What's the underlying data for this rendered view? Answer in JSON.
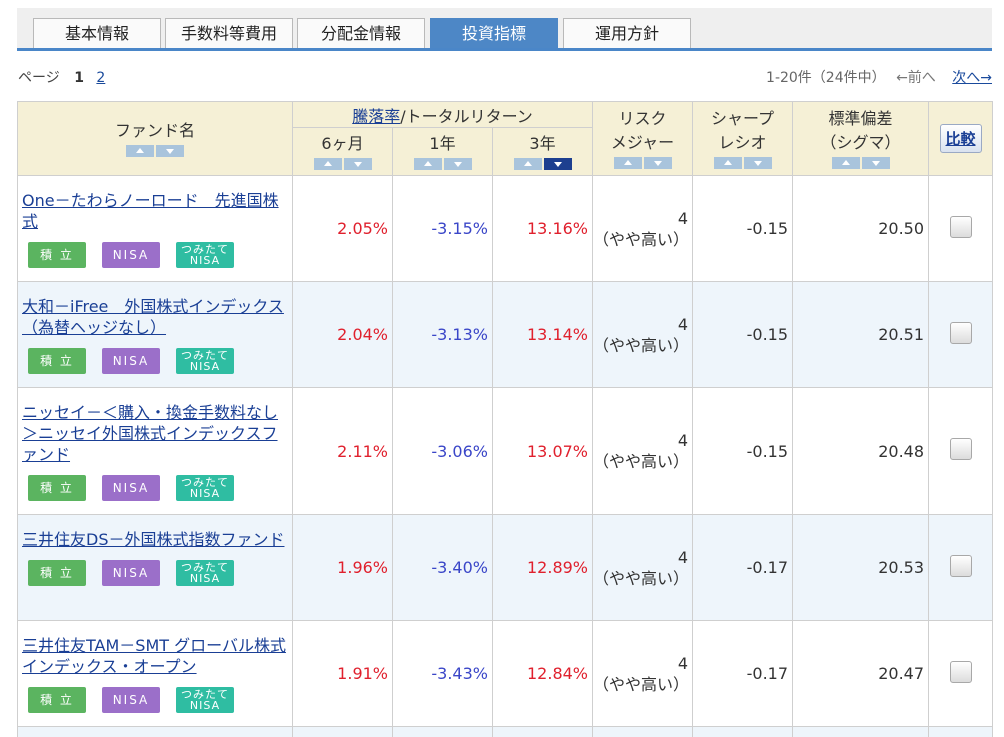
{
  "tabs": [
    {
      "label": "基本情報",
      "active": false
    },
    {
      "label": "手数料等費用",
      "active": false
    },
    {
      "label": "分配金情報",
      "active": false
    },
    {
      "label": "投資指標",
      "active": true
    },
    {
      "label": "運用方針",
      "active": false
    }
  ],
  "pager": {
    "label": "ページ",
    "current": "1",
    "next_page": "2",
    "range": "1-20件（24件中）",
    "prev": "←前へ",
    "next": "次へ→"
  },
  "header": {
    "fund_name": "ファンド名",
    "return_link": "騰落率",
    "return_rest": "/トータルリターン",
    "p6m": "6ヶ月",
    "p1y": "1年",
    "p3y": "3年",
    "risk_l1": "リスク",
    "risk_l2": "メジャー",
    "sharpe_l1": "シャープ",
    "sharpe_l2": "レシオ",
    "std_l1": "標準偏差",
    "std_l2": "（シグマ）",
    "compare": "比較"
  },
  "badges": {
    "tsumi": "積 立",
    "nisa": "NISA",
    "tsumitate_l1": "つみたて",
    "tsumitate_l2": "NISA"
  },
  "rows": [
    {
      "name": "One－たわらノーロード　先進国株式",
      "r6m": "2.05%",
      "r1y": "-3.15%",
      "r3y": "13.16%",
      "risk": "4",
      "risk_label": "（やや高い）",
      "sharpe": "-0.15",
      "std": "20.50"
    },
    {
      "name": "大和－iFree　外国株式インデックス（為替ヘッジなし）",
      "r6m": "2.04%",
      "r1y": "-3.13%",
      "r3y": "13.14%",
      "risk": "4",
      "risk_label": "（やや高い）",
      "sharpe": "-0.15",
      "std": "20.51"
    },
    {
      "name": "ニッセイ－＜購入・換金手数料なし＞ニッセイ外国株式インデックスファンド",
      "r6m": "2.11%",
      "r1y": "-3.06%",
      "r3y": "13.07%",
      "risk": "4",
      "risk_label": "（やや高い）",
      "sharpe": "-0.15",
      "std": "20.48"
    },
    {
      "name": "三井住友DS－外国株式指数ファンド",
      "r6m": "1.96%",
      "r1y": "-3.40%",
      "r3y": "12.89%",
      "risk": "4",
      "risk_label": "（やや高い）",
      "sharpe": "-0.17",
      "std": "20.53"
    },
    {
      "name": "三井住友TAM－SMT グローバル株式インデックス・オープン",
      "r6m": "1.91%",
      "r1y": "-3.43%",
      "r3y": "12.84%",
      "risk": "4",
      "risk_label": "（やや高い）",
      "sharpe": "-0.17",
      "std": "20.47"
    }
  ]
}
